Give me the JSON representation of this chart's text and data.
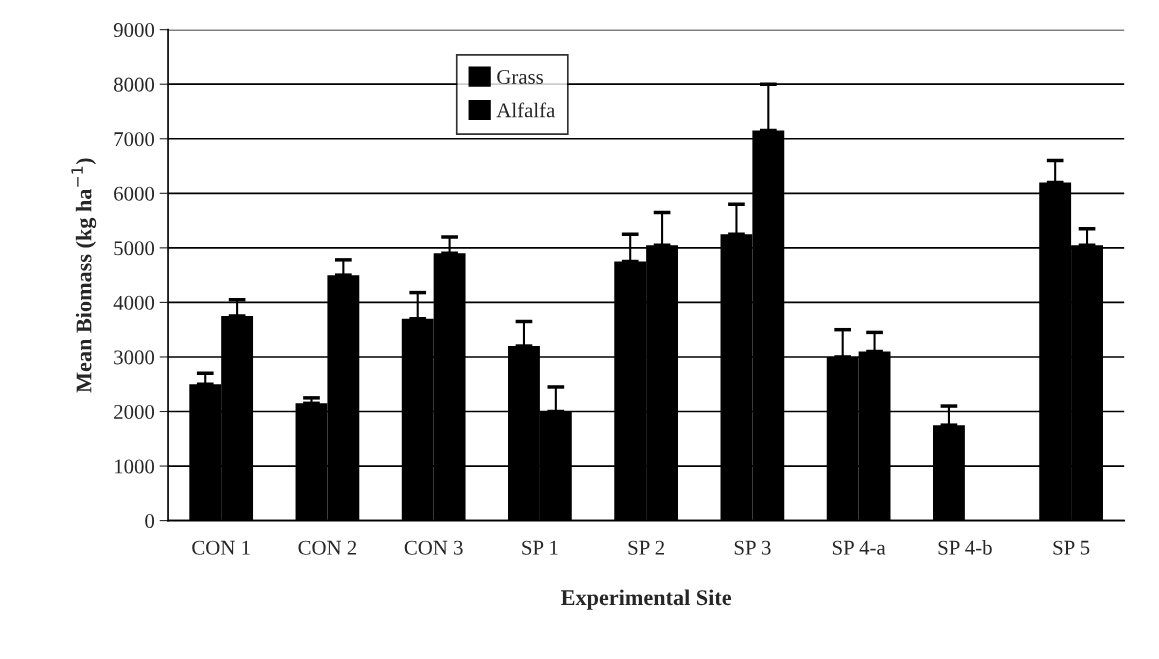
{
  "chart_data": {
    "type": "bar",
    "xlabel": "Experimental Site",
    "ylabel": "Mean Biomass (kg ha$^{−1}$)",
    "categories": [
      "CON 1",
      "CON 2",
      "CON 3",
      "SP 1",
      "SP 2",
      "SP 3",
      "SP 4-a",
      "SP 4-b",
      "SP 5"
    ],
    "series": [
      {
        "name": "Grass",
        "color": "#000000",
        "values": [
          2500,
          2150,
          3700,
          3200,
          4750,
          5250,
          3000,
          1750,
          6200
        ],
        "errors": [
          [
            2500,
            2700
          ],
          [
            2150,
            2250
          ],
          [
            3700,
            4180
          ],
          [
            3200,
            3650
          ],
          [
            4750,
            5250
          ],
          [
            5250,
            5800
          ],
          [
            3000,
            3500
          ],
          [
            1750,
            2100
          ],
          [
            6200,
            6600
          ]
        ]
      },
      {
        "name": "Alfalfa",
        "color": "#000000",
        "values": [
          3750,
          4500,
          4900,
          2000,
          5050,
          7150,
          3100,
          null,
          5050
        ],
        "errors": [
          [
            3750,
            4050
          ],
          [
            4500,
            4780
          ],
          [
            4900,
            5200
          ],
          [
            2000,
            2450
          ],
          [
            5050,
            5650
          ],
          [
            7150,
            8000
          ],
          [
            3100,
            3450
          ],
          null,
          [
            5050,
            5350
          ]
        ]
      }
    ],
    "ylim": [
      0,
      9000
    ],
    "yticks": [
      0,
      1000,
      2000,
      3000,
      4000,
      5000,
      6000,
      7000,
      8000,
      9000
    ],
    "grid": "y",
    "legend": "top"
  }
}
